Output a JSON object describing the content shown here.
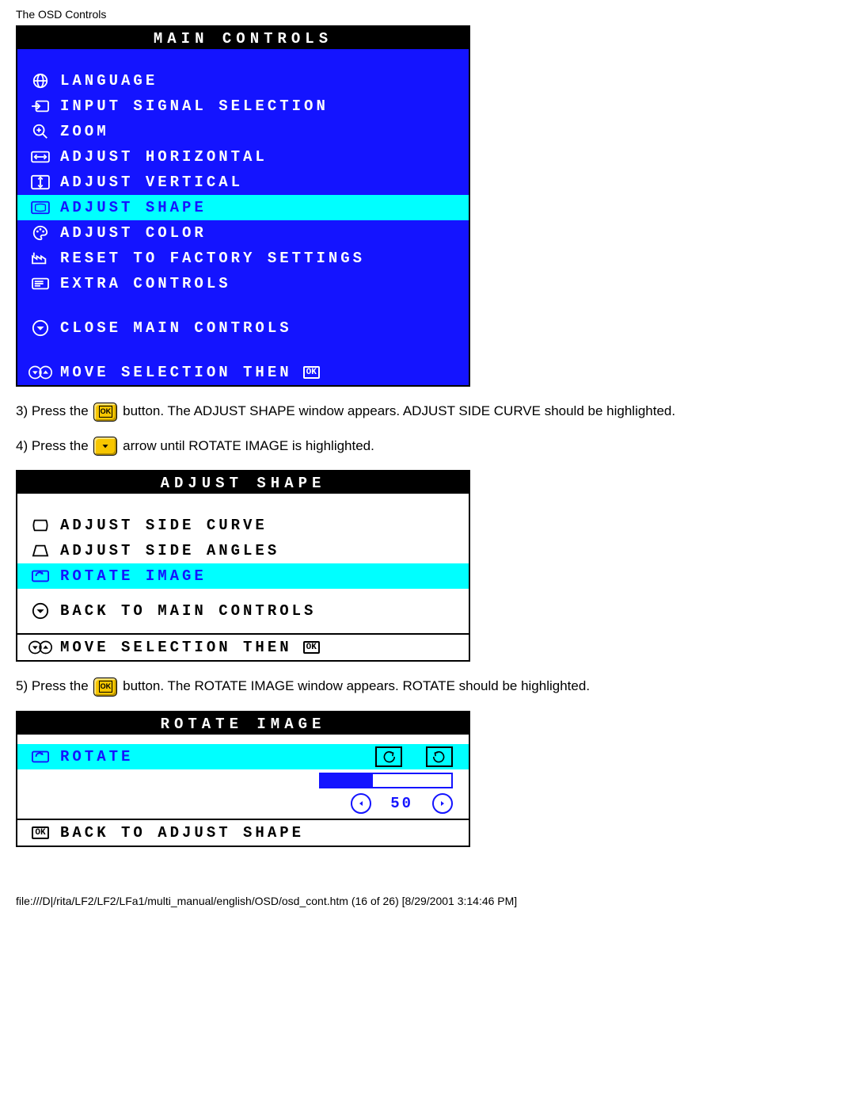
{
  "page_header": "The OSD Controls",
  "panel1": {
    "title": "MAIN CONTROLS",
    "items": [
      {
        "label": "LANGUAGE",
        "icon": "globe",
        "highlight": false
      },
      {
        "label": "INPUT SIGNAL SELECTION",
        "icon": "input",
        "highlight": false
      },
      {
        "label": "ZOOM",
        "icon": "zoom",
        "highlight": false
      },
      {
        "label": "ADJUST HORIZONTAL",
        "icon": "horiz",
        "highlight": false
      },
      {
        "label": "ADJUST VERTICAL",
        "icon": "vert",
        "highlight": false
      },
      {
        "label": "ADJUST SHAPE",
        "icon": "shape",
        "highlight": true
      },
      {
        "label": "ADJUST COLOR",
        "icon": "palette",
        "highlight": false
      },
      {
        "label": "RESET TO FACTORY SETTINGS",
        "icon": "factory",
        "highlight": false
      },
      {
        "label": "EXTRA CONTROLS",
        "icon": "extra",
        "highlight": false
      }
    ],
    "close": "CLOSE MAIN CONTROLS",
    "footer": "MOVE SELECTION THEN"
  },
  "step3a": "3) Press the ",
  "step3b": " button. The ADJUST SHAPE window appears. ADJUST SIDE CURVE should be highlighted.",
  "step4a": "4) Press the ",
  "step4b": " arrow until ROTATE IMAGE is highlighted.",
  "panel2": {
    "title": "ADJUST SHAPE",
    "items": [
      {
        "label": "ADJUST SIDE CURVE",
        "icon": "sidecurve",
        "highlight": false
      },
      {
        "label": "ADJUST SIDE ANGLES",
        "icon": "sideangles",
        "highlight": false
      },
      {
        "label": "ROTATE IMAGE",
        "icon": "rotate",
        "highlight": true
      }
    ],
    "back": "BACK TO MAIN CONTROLS",
    "footer": "MOVE SELECTION THEN"
  },
  "step5a": "5) Press the ",
  "step5b": " button. The ROTATE IMAGE window appears. ROTATE should be highlighted.",
  "panel3": {
    "title": "ROTATE IMAGE",
    "rotate_label": "ROTATE",
    "value": "50",
    "bar_percent": 40,
    "back": "BACK TO ADJUST SHAPE"
  },
  "footer": "file:///D|/rita/LF2/LF2/LFa1/multi_manual/english/OSD/osd_cont.htm (16 of 26) [8/29/2001 3:14:46 PM]",
  "colors": {
    "blue": "#1414ff",
    "cyan": "#00ffff",
    "yellow": "#f7c600"
  }
}
